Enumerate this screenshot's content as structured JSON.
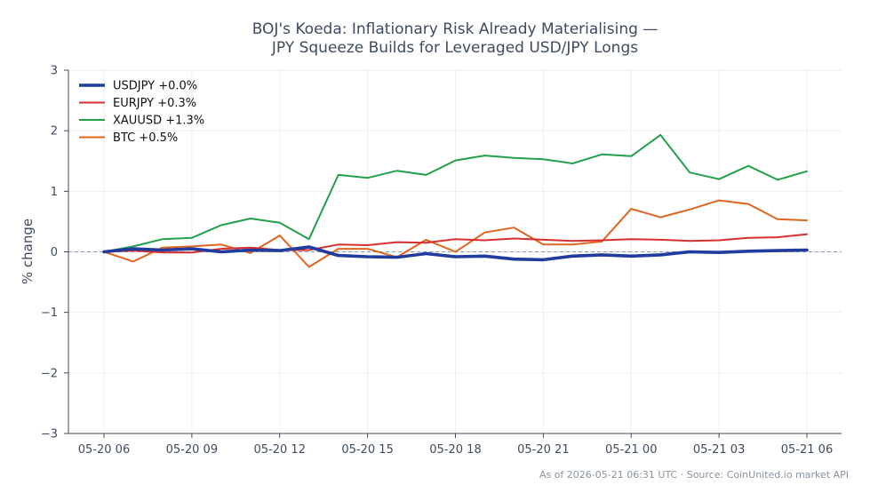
{
  "chart_data": {
    "type": "line",
    "title": [
      "BOJ's Koeda: Inflationary Risk Already Materialising —",
      "JPY Squeeze Builds for Leveraged USD/JPY Longs"
    ],
    "xlabel": "",
    "ylabel": "% change",
    "ylim": [
      -3,
      3
    ],
    "yticks": [
      -3,
      -2,
      -1,
      0,
      1,
      2,
      3
    ],
    "ytick_labels": [
      "−3",
      "−2",
      "−1",
      "0",
      "1",
      "2",
      "3"
    ],
    "xticks": [
      "05-20 06",
      "05-20 09",
      "05-20 12",
      "05-20 15",
      "05-20 18",
      "05-20 21",
      "05-21 00",
      "05-21 03",
      "05-21 06"
    ],
    "x_start_label": "05-20 06",
    "x_step_hours": 1,
    "x_count": 25,
    "grid": true,
    "baseline": 0,
    "legend_position": "top-left",
    "series": [
      {
        "name": "USDJPY +0.0%",
        "color": "#1f3c9e",
        "width": 3.6,
        "values": [
          0.0,
          0.05,
          0.03,
          0.05,
          0.0,
          0.03,
          0.02,
          0.08,
          -0.06,
          -0.08,
          -0.09,
          -0.03,
          -0.08,
          -0.07,
          -0.12,
          -0.13,
          -0.07,
          -0.05,
          -0.07,
          -0.05,
          0.0,
          -0.01,
          0.01,
          0.02,
          0.03
        ]
      },
      {
        "name": "EURJPY +0.3%",
        "color": "#d62f2f",
        "width": 2,
        "values": [
          0.0,
          0.02,
          -0.01,
          -0.01,
          0.05,
          0.07,
          0.03,
          0.03,
          0.12,
          0.11,
          0.16,
          0.15,
          0.21,
          0.19,
          0.22,
          0.2,
          0.18,
          0.19,
          0.21,
          0.2,
          0.18,
          0.19,
          0.23,
          0.24,
          0.29
        ]
      },
      {
        "name": "XAUUSD +1.3%",
        "color": "#22a04a",
        "width": 2,
        "values": [
          0.0,
          0.09,
          0.21,
          0.23,
          0.44,
          0.55,
          0.48,
          0.21,
          1.27,
          1.22,
          1.34,
          1.27,
          1.51,
          1.59,
          1.55,
          1.53,
          1.46,
          1.61,
          1.58,
          1.93,
          1.31,
          1.2,
          1.42,
          1.19,
          1.33
        ]
      },
      {
        "name": "BTC +0.5%",
        "color": "#e0651e",
        "width": 2,
        "values": [
          0.0,
          -0.16,
          0.07,
          0.09,
          0.12,
          -0.02,
          0.27,
          -0.25,
          0.05,
          0.05,
          -0.09,
          0.2,
          0.0,
          0.32,
          0.4,
          0.12,
          0.12,
          0.17,
          0.71,
          0.57,
          0.7,
          0.85,
          0.79,
          0.54,
          0.52
        ]
      }
    ],
    "footer": "As of 2026-05-21 06:31 UTC · Source: CoinUnited.io market API"
  }
}
